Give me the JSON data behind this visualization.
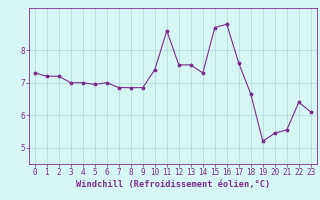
{
  "x": [
    0,
    1,
    2,
    3,
    4,
    5,
    6,
    7,
    8,
    9,
    10,
    11,
    12,
    13,
    14,
    15,
    16,
    17,
    18,
    19,
    20,
    21,
    22,
    23
  ],
  "y": [
    7.3,
    7.2,
    7.2,
    7.0,
    7.0,
    6.95,
    7.0,
    6.85,
    6.85,
    6.85,
    7.4,
    8.6,
    7.55,
    7.55,
    7.3,
    8.7,
    8.8,
    7.6,
    6.65,
    5.2,
    5.45,
    5.55,
    6.4,
    6.1
  ],
  "line_color": "#7b2d8b",
  "marker": "*",
  "marker_size": 2.5,
  "bg_color": "#d6f5f5",
  "grid_color": "#b0d8d8",
  "xlabel": "Windchill (Refroidissement éolien,°C)",
  "ylabel": "",
  "ylim": [
    4.5,
    9.3
  ],
  "xlim": [
    -0.5,
    23.5
  ],
  "yticks": [
    5,
    6,
    7,
    8
  ],
  "xticks": [
    0,
    1,
    2,
    3,
    4,
    5,
    6,
    7,
    8,
    9,
    10,
    11,
    12,
    13,
    14,
    15,
    16,
    17,
    18,
    19,
    20,
    21,
    22,
    23
  ],
  "tick_fontsize": 5.5,
  "xlabel_fontsize": 6.2,
  "spine_color": "#7b2d8b"
}
